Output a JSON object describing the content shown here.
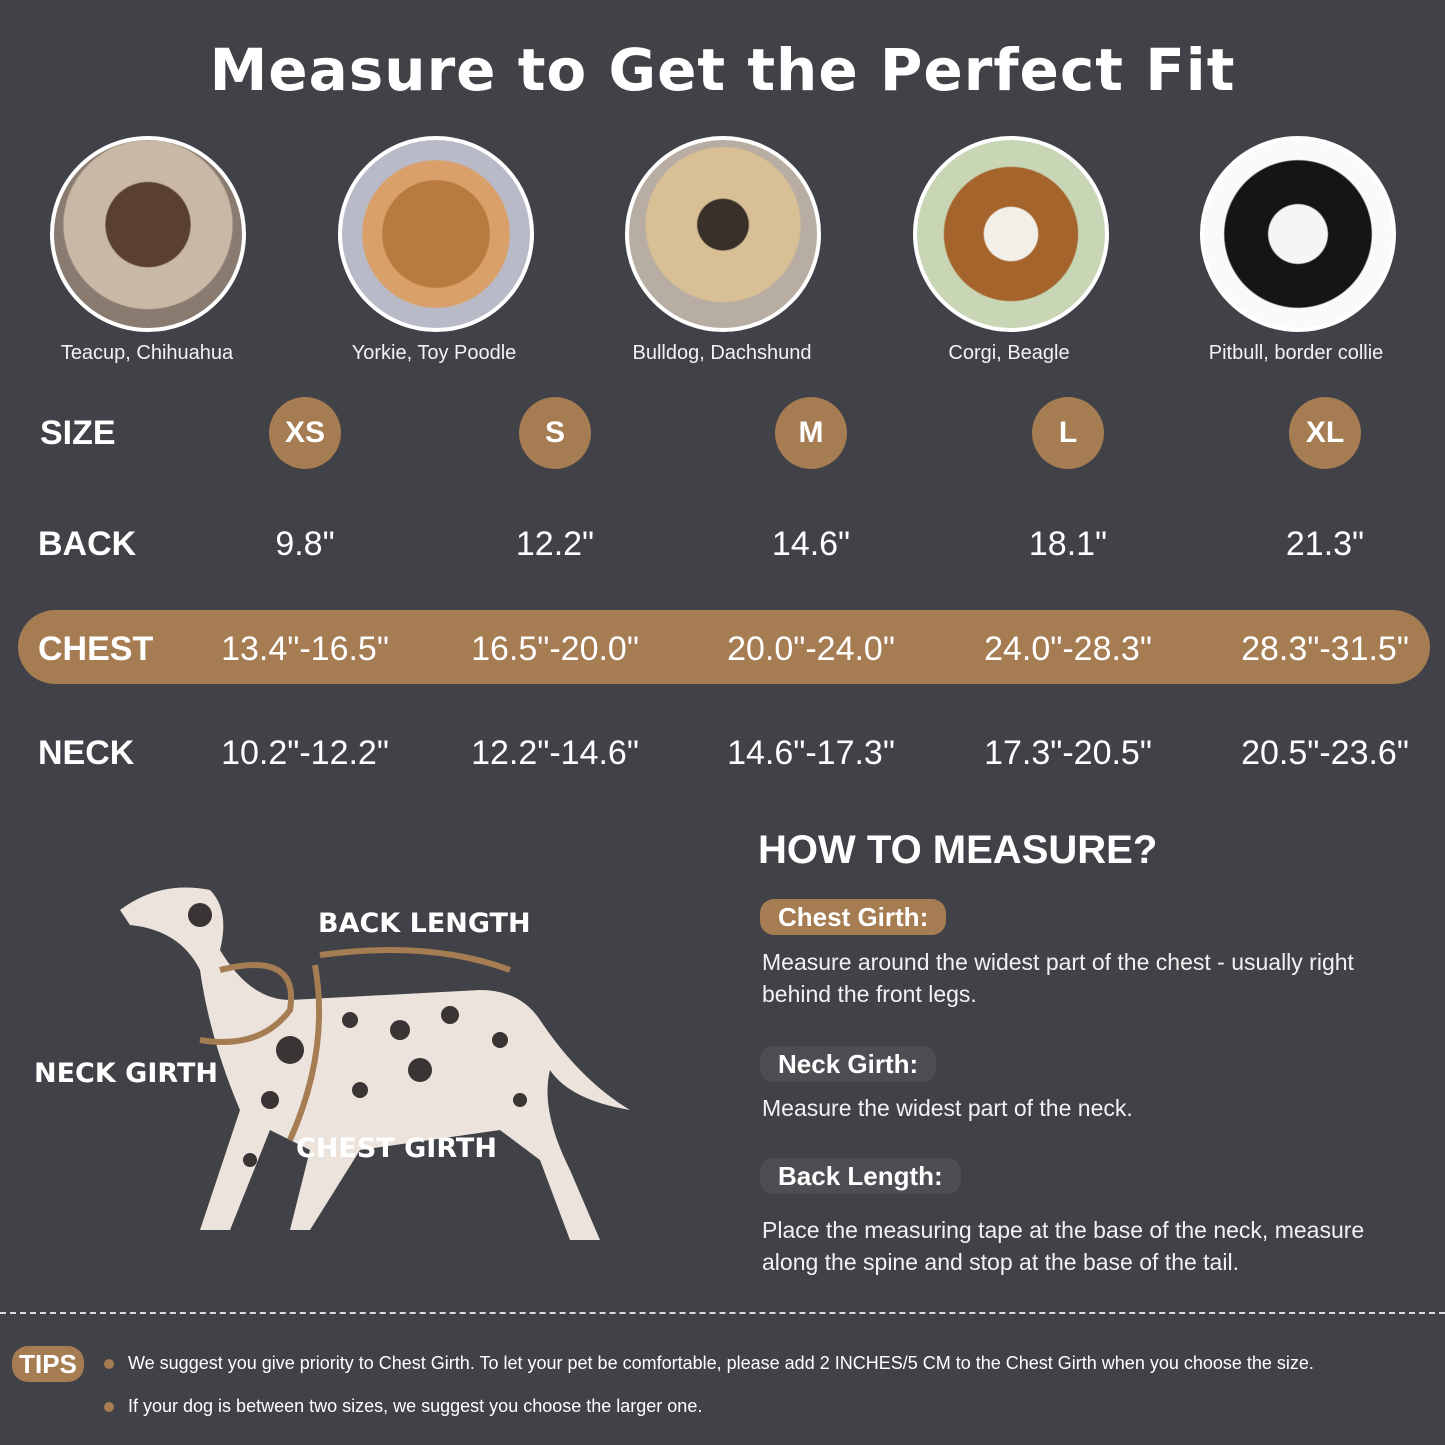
{
  "title": "Measure to Get the Perfect Fit",
  "colors": {
    "background": "#414247",
    "accent": "#a67c52",
    "pill_dark": "#4d4e53"
  },
  "breeds": [
    "Teacup, Chihuahua",
    "Yorkie, Toy Poodle",
    "Bulldog, Dachshund",
    "Corgi, Beagle",
    "Pitbull, border collie"
  ],
  "table": {
    "size_label": "SIZE",
    "back_label": "BACK",
    "chest_label": "CHEST",
    "neck_label": "NECK",
    "sizes": [
      "XS",
      "S",
      "M",
      "L",
      "XL"
    ],
    "back": [
      "9.8\"",
      "12.2\"",
      "14.6\"",
      "18.1\"",
      "21.3\""
    ],
    "chest": [
      "13.4\"-16.5\"",
      "16.5\"-20.0\"",
      "20.0\"-24.0\"",
      "24.0\"-28.3\"",
      "28.3\"-31.5\""
    ],
    "neck": [
      "10.2\"-12.2\"",
      "12.2\"-14.6\"",
      "14.6\"-17.3\"",
      "17.3\"-20.5\"",
      "20.5\"-23.6\""
    ]
  },
  "diagram": {
    "back_length": "BACK LENGTH",
    "neck_girth": "NECK GIRTH",
    "chest_girth": "CHEST GIRTH"
  },
  "how": {
    "heading": "HOW TO MEASURE?",
    "items": [
      {
        "label": "Chest Girth:",
        "text": "Measure around the widest part of the chest - usually right behind the front legs."
      },
      {
        "label": "Neck Girth:",
        "text": "Measure the widest part of the neck."
      },
      {
        "label": "Back Length:",
        "text": "Place the measuring tape at the base of the neck, measure along the spine and stop at the base of the tail."
      }
    ]
  },
  "tips": {
    "label": "TIPS",
    "items": [
      "We suggest you give priority to Chest Girth. To let your pet be comfortable, please add 2 INCHES/5 CM to the Chest Girth when you choose the size.",
      "If your dog is between two sizes, we suggest you choose the larger one."
    ]
  }
}
